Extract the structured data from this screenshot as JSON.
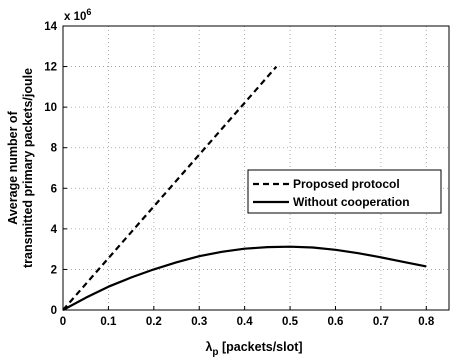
{
  "chart_data": {
    "type": "line",
    "multiplier_label": "x 10",
    "multiplier_exponent": "6",
    "xlabel_symbol": "λ",
    "xlabel_subscript": "p",
    "xlabel_rest": " [packets/slot]",
    "ylabel_line1": "Average number of",
    "ylabel_line2": "transmitted primary packets/joule",
    "xlim": [
      0,
      0.85
    ],
    "ylim": [
      0,
      14
    ],
    "xticks": [
      "0",
      "0.1",
      "0.2",
      "0.3",
      "0.4",
      "0.5",
      "0.6",
      "0.7",
      "0.8"
    ],
    "yticks": [
      "0",
      "2",
      "4",
      "6",
      "8",
      "10",
      "12",
      "14"
    ],
    "grid": true,
    "legend_position": "middle-right",
    "series": [
      {
        "name": "Proposed protocol",
        "style": "dashed",
        "color": "#000000",
        "x": [
          0,
          0.47
        ],
        "y": [
          0,
          12.0
        ]
      },
      {
        "name": "Without cooperation",
        "style": "solid",
        "color": "#000000",
        "x": [
          0,
          0.05,
          0.1,
          0.15,
          0.2,
          0.25,
          0.3,
          0.35,
          0.4,
          0.45,
          0.5,
          0.55,
          0.6,
          0.65,
          0.7,
          0.75,
          0.8
        ],
        "y": [
          0,
          0.6,
          1.15,
          1.6,
          2.0,
          2.35,
          2.65,
          2.87,
          3.02,
          3.1,
          3.12,
          3.08,
          2.97,
          2.8,
          2.6,
          2.37,
          2.15
        ]
      }
    ]
  }
}
